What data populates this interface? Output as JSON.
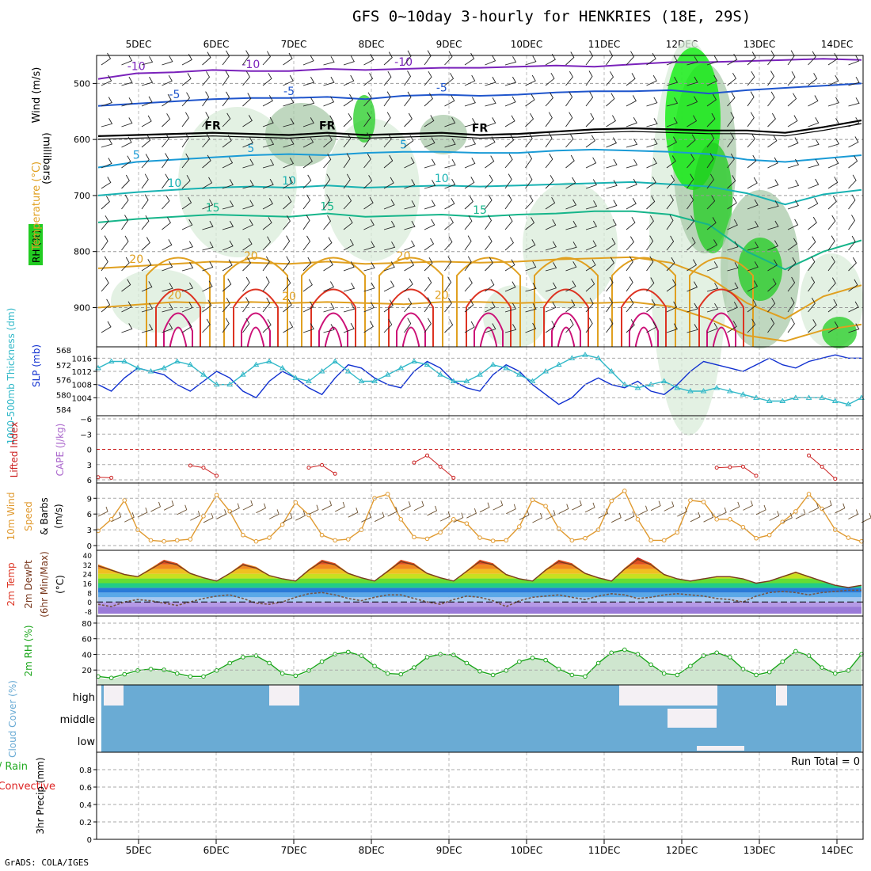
{
  "title": "GFS 0~10day 3-hourly for HENKRIES (18E, 29S)",
  "footer": "GrADS: COLA/IGES",
  "colors": {
    "rh_light": "#d9ecd9",
    "rh_mid": "#a9c9a9",
    "rh_green": "#22cc22",
    "rh_bright": "#00ee00",
    "temp_purple": "#7a22bb",
    "temp_blue": "#1f55cc",
    "temp_cyan": "#1a9bd6",
    "temp_teal": "#18b2b2",
    "temp_green": "#16b58a",
    "temp_orange": "#e0a020",
    "temp_red": "#dd3322",
    "temp_magenta": "#cc1177",
    "slp": "#1030d0",
    "thickness": "#30b8c8",
    "lifted": "#cc2222",
    "cape": "#aa66cc",
    "wind10": "#e09a30",
    "rh2m": "#1aa51a",
    "cloud": "#6aabd4",
    "precip": "#22aa22",
    "precip_conv": "#dd2222"
  },
  "chart_data": [
    {
      "id": "profile",
      "type": "heatmap",
      "title": "Temperature (°C) Wind (m/s) RH (%)",
      "ylabel": "(millibars)",
      "x": [
        "5DEC",
        "6DEC",
        "7DEC",
        "8DEC",
        "9DEC",
        "10DEC",
        "11DEC",
        "12DEC",
        "13DEC",
        "14DEC"
      ],
      "yticks": [
        500,
        600,
        700,
        800,
        900
      ],
      "ylim": [
        450,
        970
      ],
      "isotherms": [
        {
          "label": "-10",
          "value": -10,
          "color": "#7a22bb",
          "p": [
            492,
            482,
            480,
            476,
            478,
            478,
            474,
            476,
            474,
            472,
            472,
            470,
            468,
            470,
            466,
            462,
            462,
            460,
            458,
            456,
            458
          ]
        },
        {
          "label": "-5",
          "value": -5,
          "color": "#1f55cc",
          "p": [
            540,
            536,
            532,
            528,
            526,
            526,
            524,
            528,
            522,
            520,
            522,
            520,
            516,
            514,
            514,
            512,
            518,
            512,
            508,
            504,
            500
          ]
        },
        {
          "label": "FR",
          "value": 0,
          "color": "#000000",
          "p": [
            594,
            592,
            590,
            588,
            590,
            592,
            588,
            592,
            590,
            588,
            592,
            590,
            586,
            582,
            580,
            582,
            584,
            584,
            588,
            578,
            566
          ]
        },
        {
          "label": "5",
          "value": 5,
          "color": "#1a9bd6",
          "p": [
            650,
            640,
            636,
            632,
            628,
            626,
            628,
            624,
            622,
            622,
            624,
            624,
            620,
            618,
            620,
            622,
            626,
            636,
            640,
            634,
            628
          ]
        },
        {
          "label": "10",
          "value": 10,
          "color": "#18b2b2",
          "p": [
            700,
            694,
            690,
            686,
            684,
            686,
            682,
            686,
            684,
            682,
            684,
            682,
            680,
            678,
            676,
            680,
            684,
            696,
            716,
            698,
            690
          ]
        },
        {
          "label": "15",
          "value": 15,
          "color": "#16b58a",
          "p": [
            748,
            742,
            738,
            734,
            736,
            738,
            732,
            738,
            736,
            734,
            738,
            734,
            732,
            728,
            728,
            734,
            752,
            800,
            832,
            800,
            780
          ]
        },
        {
          "label": "20",
          "value": 20,
          "color": "#e0a020",
          "p": [
            830,
            826,
            822,
            818,
            820,
            822,
            818,
            822,
            820,
            818,
            820,
            818,
            814,
            812,
            810,
            820,
            846,
            892,
            920,
            880,
            860
          ]
        },
        {
          "label": "20",
          "value": 20,
          "color": "#e0a020",
          "p": [
            900,
            895,
            890,
            892,
            890,
            892,
            890,
            892,
            894,
            890,
            890,
            892,
            890,
            892,
            890,
            898,
            920,
            950,
            960,
            940,
            930
          ]
        }
      ],
      "freezing_label": "FR"
    },
    {
      "id": "slp_thickness",
      "type": "line",
      "ylabel_left": "1000-500mb Thickness (dm)",
      "ylabel_right": "SLP (mb)",
      "yticks_thickness": [
        568,
        572,
        576,
        580,
        584
      ],
      "yticks_slp": [
        1004,
        1008,
        1012,
        1016
      ],
      "ylim_slp": [
        1000,
        1018
      ],
      "series": [
        {
          "name": "SLP (mb)",
          "color": "#1030d0",
          "values": [
            1008,
            1006,
            1010,
            1013,
            1012,
            1011,
            1008,
            1006,
            1009,
            1012,
            1010,
            1006,
            1004,
            1009,
            1012,
            1010,
            1007,
            1005,
            1010,
            1014,
            1013,
            1010,
            1008,
            1007,
            1012,
            1015,
            1013,
            1009,
            1007,
            1006,
            1011,
            1014,
            1012,
            1008,
            1005,
            1002,
            1004,
            1008,
            1010,
            1008,
            1007,
            1009,
            1006,
            1005,
            1008,
            1012,
            1015,
            1014,
            1013,
            1012,
            1014,
            1016,
            1014,
            1013,
            1015,
            1016,
            1017,
            1016,
            1016
          ]
        },
        {
          "name": "1000-500mb Thickness (dm)",
          "color": "#30b8c8",
          "values": [
            1013,
            1015,
            1015,
            1013,
            1012,
            1013,
            1015,
            1014,
            1011,
            1008,
            1008,
            1011,
            1014,
            1015,
            1013,
            1010,
            1009,
            1012,
            1015,
            1012,
            1009,
            1009,
            1011,
            1013,
            1015,
            1014,
            1011,
            1009,
            1009,
            1011,
            1014,
            1013,
            1011,
            1009,
            1012,
            1014,
            1016,
            1017,
            1016,
            1012,
            1008,
            1007,
            1008,
            1009,
            1007,
            1006,
            1006,
            1007,
            1006,
            1005,
            1004,
            1003,
            1003,
            1004,
            1004,
            1004,
            1003,
            1002,
            1004
          ]
        }
      ]
    },
    {
      "id": "stability",
      "type": "line",
      "ylabel_left": "Lifted Index",
      "ylabel_right": "CAPE (J/kg)",
      "yticks": [
        -6,
        -3,
        0,
        3,
        6
      ],
      "ylim": [
        6,
        -6
      ],
      "series": [
        {
          "name": "Lifted Index",
          "color": "#cc2222",
          "values": [
            5.5,
            5.6,
            null,
            null,
            null,
            null,
            null,
            3.2,
            3.6,
            5.2,
            null,
            null,
            null,
            null,
            null,
            null,
            3.6,
            3.1,
            4.8,
            null,
            null,
            null,
            null,
            null,
            2.6,
            1.2,
            3.4,
            5.6,
            null,
            null,
            null,
            null,
            null,
            null,
            null,
            null,
            null,
            null,
            null,
            null,
            null,
            null,
            null,
            null,
            null,
            null,
            null,
            3.6,
            3.5,
            3.4,
            5.2,
            null,
            null,
            null,
            1.2,
            3.4,
            5.8,
            null,
            null
          ]
        }
      ]
    },
    {
      "id": "wind10m",
      "type": "line",
      "ylabel": "10m Wind Speed & Barbs (m/s)",
      "yticks": [
        0,
        3,
        6,
        9
      ],
      "ylim": [
        0,
        11
      ],
      "series": [
        {
          "name": "10m Wind Speed",
          "color": "#e09a30",
          "values": [
            2.8,
            5.0,
            8.6,
            3.0,
            1.0,
            0.8,
            1.0,
            1.2,
            5.6,
            9.6,
            6.5,
            2.0,
            0.8,
            1.5,
            4.0,
            8.2,
            5.8,
            2.0,
            1.0,
            1.2,
            3.0,
            9.0,
            9.8,
            5.0,
            1.6,
            1.3,
            2.5,
            5.0,
            4.2,
            1.5,
            0.9,
            1.0,
            3.6,
            8.7,
            7.5,
            3.2,
            1.0,
            1.4,
            3.0,
            8.5,
            10.4,
            5.0,
            1.0,
            1.0,
            2.5,
            8.6,
            8.3,
            5.0,
            5.0,
            3.5,
            1.4,
            2.0,
            4.5,
            6.5,
            9.8,
            7.0,
            3.0,
            1.5,
            0.8
          ]
        }
      ]
    },
    {
      "id": "temp2m",
      "type": "area",
      "ylabel": "2m Temp 2m DewPt (6hr Min/Max) (°C)",
      "yticks": [
        -8,
        0,
        8,
        16,
        24,
        32,
        40
      ],
      "ylim": [
        -10,
        42
      ],
      "series": [
        {
          "name": "2m Temp",
          "color": "#7a3a20",
          "values": [
            32,
            28,
            24,
            22,
            29,
            36,
            33,
            25,
            21,
            18,
            25,
            33,
            30,
            23,
            20,
            18,
            28,
            36,
            33,
            25,
            21,
            18,
            27,
            36,
            33,
            25,
            21,
            18,
            27,
            36,
            33,
            24,
            20,
            18,
            28,
            36,
            33,
            25,
            21,
            18,
            29,
            38,
            33,
            24,
            20,
            18,
            20,
            22,
            22,
            20,
            16,
            18,
            22,
            26,
            22,
            18,
            14,
            12,
            14
          ]
        },
        {
          "name": "2m DewPt",
          "color": "#888888",
          "values": [
            -2,
            -4,
            0,
            2,
            1,
            -1,
            -3,
            0,
            3,
            5,
            6,
            3,
            -1,
            -2,
            0,
            4,
            7,
            8,
            6,
            3,
            1,
            4,
            6,
            6,
            3,
            0,
            -2,
            2,
            5,
            4,
            1,
            -4,
            1,
            4,
            5,
            6,
            4,
            2,
            5,
            7,
            6,
            3,
            4,
            6,
            7,
            6,
            5,
            3,
            2,
            0,
            5,
            8,
            9,
            8,
            6,
            8,
            9,
            10,
            10
          ]
        }
      ]
    },
    {
      "id": "rh2m",
      "type": "area",
      "ylabel": "2m RH (%)",
      "yticks": [
        20,
        40,
        60,
        80
      ],
      "ylim": [
        5,
        85
      ],
      "series": [
        {
          "name": "2m RH",
          "color": "#1aa51a",
          "values": [
            10,
            8,
            13,
            18,
            20,
            19,
            14,
            10,
            10,
            18,
            28,
            36,
            38,
            28,
            14,
            11,
            18,
            30,
            40,
            43,
            38,
            24,
            14,
            13,
            22,
            36,
            40,
            39,
            28,
            17,
            12,
            18,
            30,
            35,
            32,
            20,
            12,
            10,
            28,
            42,
            46,
            40,
            26,
            14,
            12,
            24,
            38,
            42,
            36,
            20,
            12,
            16,
            30,
            44,
            38,
            22,
            14,
            18,
            40
          ]
        }
      ]
    },
    {
      "id": "cloud",
      "type": "bar",
      "ylabel": "Cloud Cover (%)",
      "levels": [
        "high",
        "middle",
        "low"
      ]
    },
    {
      "id": "precip",
      "type": "bar",
      "ylabel": "3hr Precip (mm)",
      "legend": [
        "Total / Rain",
        "Convective"
      ],
      "yticks": [
        0,
        0.2,
        0.4,
        0.6,
        0.8
      ],
      "ylim": [
        0,
        1
      ],
      "run_total": "Run Total = 0"
    }
  ]
}
